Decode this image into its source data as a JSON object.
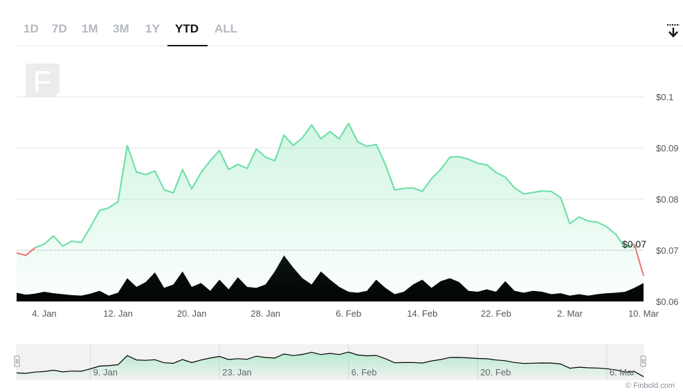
{
  "range_tabs": {
    "items": [
      {
        "label": "1D"
      },
      {
        "label": "7D"
      },
      {
        "label": "1M"
      },
      {
        "label": "3M"
      },
      {
        "label": "1Y"
      },
      {
        "label": "YTD"
      },
      {
        "label": "ALL"
      }
    ],
    "active": "YTD"
  },
  "icons": {
    "download": "download-icon",
    "watermark": "finbold-logo-icon"
  },
  "colors": {
    "up_line": "#6fe0a6",
    "down_line": "#f07a7a",
    "volume": "#000000",
    "grid": "#e6e6e6",
    "navigator_line": "#000000"
  },
  "credit": "© Finbold.com",
  "chart_data": {
    "type": "line",
    "y_unit": "$",
    "ylim": [
      0.06,
      0.1
    ],
    "y_ticks": [
      "$0.1",
      "$0.09",
      "$0.08",
      "$0.07",
      "$0.06"
    ],
    "x_ticks": [
      "4. Jan",
      "12. Jan",
      "20. Jan",
      "28. Jan",
      "6. Feb",
      "14. Feb",
      "22. Feb",
      "2. Mar",
      "10. Mar"
    ],
    "reference_line": {
      "value": 0.07,
      "label": "$0.07"
    },
    "grid": true,
    "series": [
      {
        "dates": [
          "Jan 1",
          "Jan 2",
          "Jan 3",
          "Jan 4",
          "Jan 5",
          "Jan 6",
          "Jan 7",
          "Jan 8",
          "Jan 9",
          "Jan 10",
          "Jan 11",
          "Jan 12",
          "Jan 13",
          "Jan 14",
          "Jan 15",
          "Jan 16",
          "Jan 17",
          "Jan 18",
          "Jan 19",
          "Jan 20",
          "Jan 21",
          "Jan 22",
          "Jan 23",
          "Jan 24",
          "Jan 25",
          "Jan 26",
          "Jan 27",
          "Jan 28",
          "Jan 29",
          "Jan 30",
          "Jan 31",
          "Feb 1",
          "Feb 2",
          "Feb 3",
          "Feb 4",
          "Feb 5",
          "Feb 6",
          "Feb 7",
          "Feb 8",
          "Feb 9",
          "Feb 10",
          "Feb 11",
          "Feb 12",
          "Feb 13",
          "Feb 14",
          "Feb 15",
          "Feb 16",
          "Feb 17",
          "Feb 18",
          "Feb 19",
          "Feb 20",
          "Feb 21",
          "Feb 22",
          "Feb 23",
          "Feb 24",
          "Feb 25",
          "Feb 26",
          "Feb 27",
          "Feb 28",
          "Mar 1",
          "Mar 2",
          "Mar 3",
          "Mar 4",
          "Mar 5",
          "Mar 6",
          "Mar 7",
          "Mar 8",
          "Mar 9",
          "Mar 10"
        ],
        "values": [
          0.0695,
          0.069,
          0.0705,
          0.0712,
          0.0728,
          0.0708,
          0.0718,
          0.0715,
          0.0745,
          0.0778,
          0.0783,
          0.0795,
          0.0905,
          0.0853,
          0.0848,
          0.0855,
          0.0818,
          0.0812,
          0.0858,
          0.082,
          0.0852,
          0.0875,
          0.0895,
          0.0858,
          0.0868,
          0.086,
          0.0898,
          0.0882,
          0.0875,
          0.0925,
          0.0905,
          0.092,
          0.0945,
          0.0918,
          0.0932,
          0.0918,
          0.0948,
          0.0912,
          0.0903,
          0.0907,
          0.0868,
          0.0818,
          0.0821,
          0.0822,
          0.0815,
          0.084,
          0.0858,
          0.0882,
          0.0883,
          0.0878,
          0.087,
          0.0867,
          0.0852,
          0.0843,
          0.0822,
          0.081,
          0.0813,
          0.0816,
          0.0815,
          0.0803,
          0.0752,
          0.0765,
          0.0757,
          0.0755,
          0.0746,
          0.0731,
          0.0705,
          0.0712,
          0.065
        ],
        "colored_segments": [
          {
            "from": "Jan 1",
            "to": "Jan 3",
            "color": "down"
          },
          {
            "from": "Jan 3",
            "to": "Mar 9",
            "color": "up"
          },
          {
            "from": "Mar 9",
            "to": "Mar 10",
            "color": "down"
          }
        ]
      }
    ],
    "volume": {
      "dates": [
        "Jan 1",
        "Jan 2",
        "Jan 3",
        "Jan 4",
        "Jan 5",
        "Jan 6",
        "Jan 7",
        "Jan 8",
        "Jan 9",
        "Jan 10",
        "Jan 11",
        "Jan 12",
        "Jan 13",
        "Jan 14",
        "Jan 15",
        "Jan 16",
        "Jan 17",
        "Jan 18",
        "Jan 19",
        "Jan 20",
        "Jan 21",
        "Jan 22",
        "Jan 23",
        "Jan 24",
        "Jan 25",
        "Jan 26",
        "Jan 27",
        "Jan 28",
        "Jan 29",
        "Jan 30",
        "Jan 31",
        "Feb 1",
        "Feb 2",
        "Feb 3",
        "Feb 4",
        "Feb 5",
        "Feb 6",
        "Feb 7",
        "Feb 8",
        "Feb 9",
        "Feb 10",
        "Feb 11",
        "Feb 12",
        "Feb 13",
        "Feb 14",
        "Feb 15",
        "Feb 16",
        "Feb 17",
        "Feb 18",
        "Feb 19",
        "Feb 20",
        "Feb 21",
        "Feb 22",
        "Feb 23",
        "Feb 24",
        "Feb 25",
        "Feb 26",
        "Feb 27",
        "Feb 28",
        "Mar 1",
        "Mar 2",
        "Mar 3",
        "Mar 4",
        "Mar 5",
        "Mar 6",
        "Mar 7",
        "Mar 8",
        "Mar 9",
        "Mar 10"
      ],
      "relative": [
        0.18,
        0.14,
        0.16,
        0.2,
        0.17,
        0.15,
        0.13,
        0.12,
        0.16,
        0.22,
        0.12,
        0.18,
        0.48,
        0.3,
        0.4,
        0.6,
        0.28,
        0.35,
        0.62,
        0.3,
        0.38,
        0.22,
        0.45,
        0.25,
        0.5,
        0.3,
        0.28,
        0.35,
        0.62,
        0.95,
        0.7,
        0.48,
        0.35,
        0.62,
        0.45,
        0.3,
        0.2,
        0.18,
        0.22,
        0.45,
        0.28,
        0.15,
        0.2,
        0.35,
        0.45,
        0.28,
        0.42,
        0.48,
        0.4,
        0.22,
        0.2,
        0.25,
        0.2,
        0.42,
        0.22,
        0.18,
        0.22,
        0.2,
        0.15,
        0.17,
        0.12,
        0.15,
        0.12,
        0.15,
        0.17,
        0.18,
        0.2,
        0.28,
        0.38
      ]
    },
    "navigator": {
      "x_ticks": [
        "9. Jan",
        "23. Jan",
        "6. Feb",
        "20. Feb",
        "6. Mar"
      ]
    }
  }
}
